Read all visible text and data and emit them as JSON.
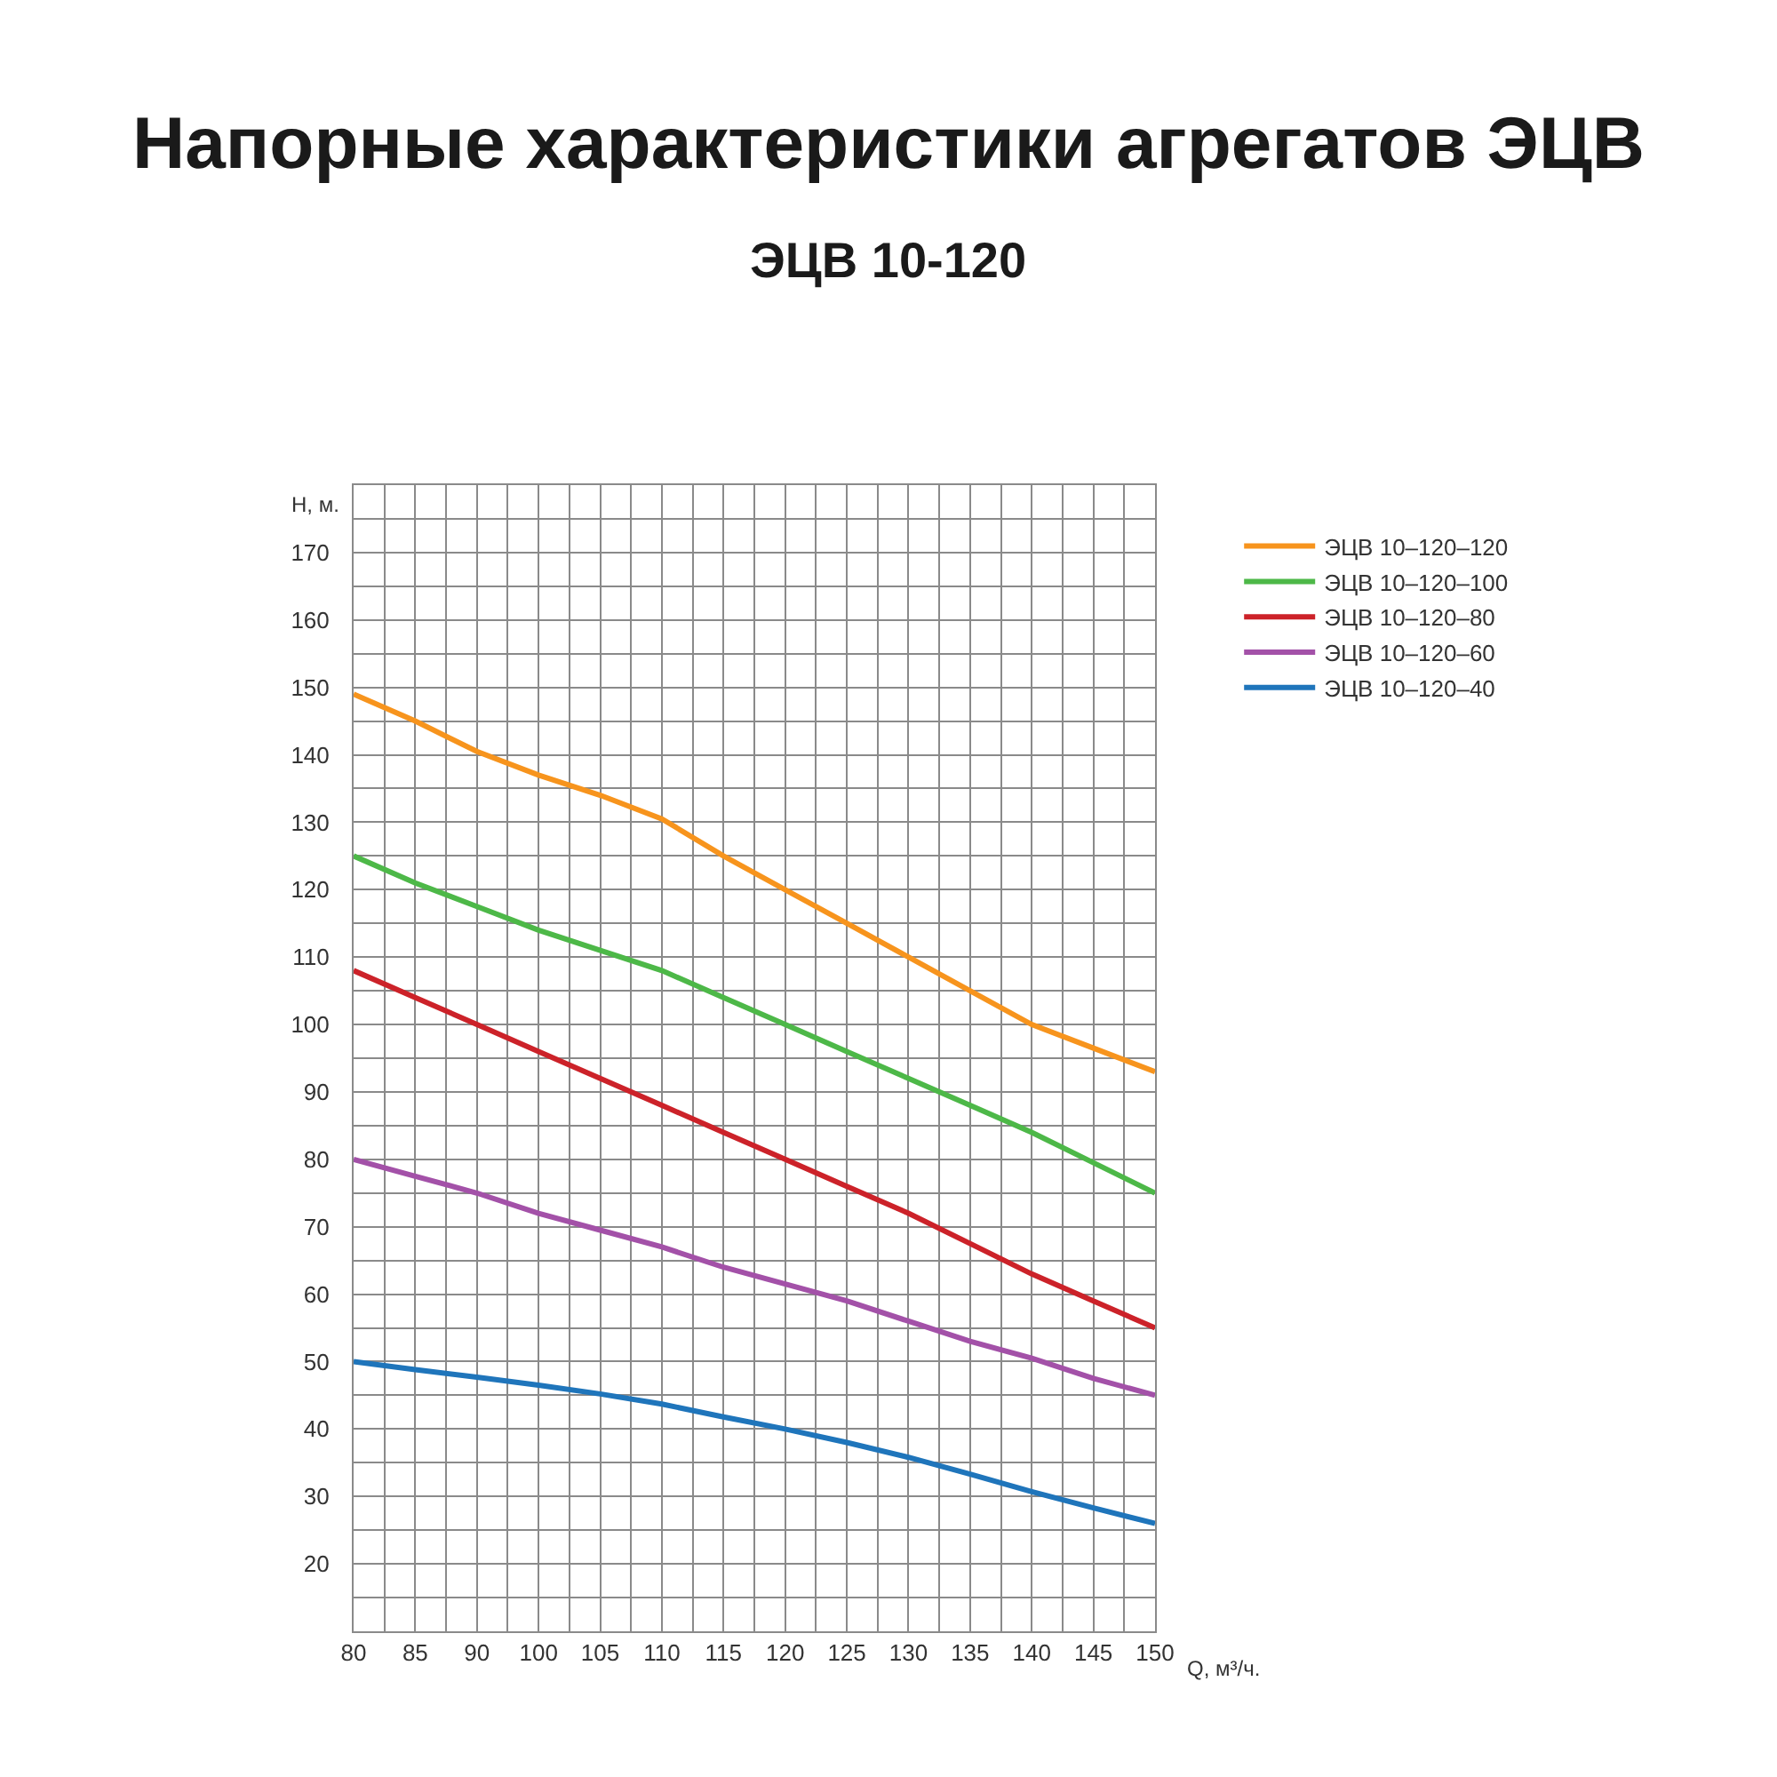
{
  "chart_data": {
    "type": "line",
    "title": "Напорные характеристики агрегатов ЭЦВ",
    "subtitle": "ЭЦВ 10-120",
    "xlabel": "Q, м³/ч.",
    "ylabel": "Н, м.",
    "categories": [
      "80",
      "85",
      "90",
      "100",
      "105",
      "110",
      "115",
      "120",
      "125",
      "130",
      "135",
      "140",
      "145",
      "150"
    ],
    "ylim": [
      10,
      180
    ],
    "yticks": [
      20,
      30,
      40,
      50,
      60,
      70,
      80,
      90,
      100,
      110,
      120,
      130,
      140,
      150,
      160,
      170
    ],
    "grid": true,
    "legend": "top right",
    "series": [
      {
        "name": "ЭЦВ 10–120–120",
        "color": "#f7941d",
        "values": [
          149,
          145,
          140.5,
          137,
          134,
          130.5,
          125,
          120,
          115,
          110,
          105,
          100,
          96.5,
          93
        ]
      },
      {
        "name": "ЭЦВ 10–120–100",
        "color": "#4db848",
        "values": [
          125,
          121,
          117.5,
          114,
          111,
          108,
          104,
          100,
          96,
          92,
          88,
          84,
          79.5,
          75
        ]
      },
      {
        "name": "ЭЦВ 10–120–80",
        "color": "#cc2229",
        "values": [
          108,
          104,
          100,
          96,
          92,
          88,
          84,
          80,
          76,
          72,
          67.5,
          63,
          59,
          55
        ]
      },
      {
        "name": "ЭЦВ 10–120–60",
        "color": "#a351a8",
        "values": [
          80,
          77.5,
          75,
          72,
          69.5,
          67,
          64,
          61.5,
          59,
          56,
          53,
          50.5,
          47.5,
          45
        ]
      },
      {
        "name": "ЭЦВ 10–120–40",
        "color": "#1f75bb",
        "values": [
          50,
          48.8,
          47.7,
          46.5,
          45.2,
          43.7,
          41.8,
          40,
          38,
          35.8,
          33.3,
          30.7,
          28.3,
          26
        ]
      }
    ]
  }
}
